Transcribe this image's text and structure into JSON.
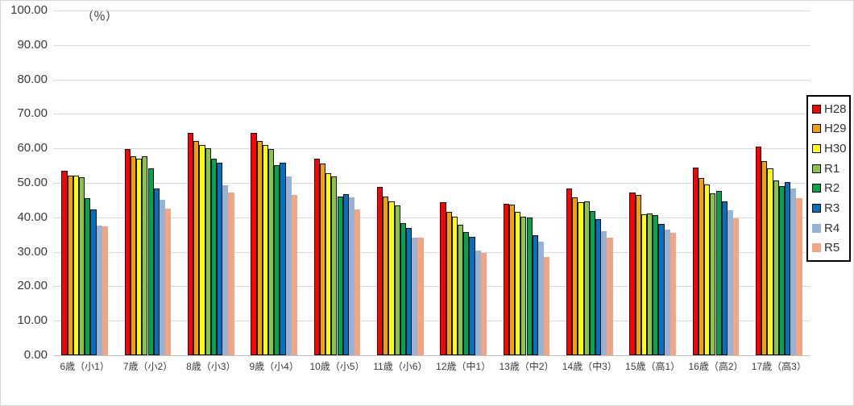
{
  "chart": {
    "unit_label": "（％）",
    "y_axis": {
      "tick_labels": [
        "100.00",
        "90.00",
        "80.00",
        "70.00",
        "60.00",
        "50.00",
        "40.00",
        "30.00",
        "20.00",
        "10.00",
        "0.00"
      ]
    },
    "colors": {
      "grid": "#d9d9d9",
      "axis": "#bfbfbf",
      "bar_border": "#111111"
    }
  },
  "chart_data": {
    "type": "bar",
    "title": "",
    "xlabel": "",
    "ylabel": "（％）",
    "ylim": [
      0,
      100
    ],
    "y_step": 10,
    "grid": "horizontal",
    "legend_position": "right",
    "categories": [
      "6歳（小1）",
      "7歳（小2）",
      "8歳（小3）",
      "9歳（小4）",
      "10歳（小5）",
      "11歳（小6）",
      "12歳（中1）",
      "13歳（中2）",
      "14歳（中3）",
      "15歳（高1）",
      "16歳（高2）",
      "17歳（高3）"
    ],
    "series": [
      {
        "name": "H28",
        "color": "#fe0000",
        "border": true,
        "values": [
          53.5,
          59.7,
          64.4,
          64.4,
          57.1,
          48.8,
          44.5,
          44.0,
          48.3,
          47.1,
          54.4,
          60.5
        ]
      },
      {
        "name": "H29",
        "color": "#f2a104",
        "border": true,
        "values": [
          52.0,
          57.6,
          62.2,
          62.1,
          55.7,
          46.1,
          41.7,
          43.6,
          45.7,
          46.4,
          51.3,
          56.4
        ]
      },
      {
        "name": "H30",
        "color": "#ffff00",
        "border": true,
        "values": [
          52.1,
          57.0,
          61.0,
          61.0,
          52.7,
          44.6,
          40.2,
          41.6,
          44.3,
          40.8,
          49.5,
          54.2
        ]
      },
      {
        "name": "R1",
        "color": "#8cc540",
        "border": true,
        "values": [
          51.6,
          57.6,
          60.1,
          59.7,
          51.8,
          43.4,
          37.9,
          40.3,
          44.6,
          41.2,
          47.0,
          50.8
        ]
      },
      {
        "name": "R2",
        "color": "#00a74a",
        "border": true,
        "values": [
          45.5,
          54.1,
          57.1,
          55.1,
          46.1,
          38.4,
          35.8,
          39.9,
          41.8,
          40.6,
          47.7,
          49.0
        ]
      },
      {
        "name": "R3",
        "color": "#0070c0",
        "border": true,
        "values": [
          42.4,
          48.4,
          55.8,
          55.8,
          46.7,
          36.8,
          34.3,
          34.8,
          39.5,
          38.0,
          44.6,
          50.2
        ]
      },
      {
        "name": "R4",
        "color": "#95b3d7",
        "border": false,
        "values": [
          37.6,
          45.1,
          49.2,
          51.9,
          45.8,
          34.2,
          30.4,
          32.9,
          35.9,
          36.4,
          42.0,
          48.4
        ]
      },
      {
        "name": "R5",
        "color": "#f3a482",
        "border": false,
        "values": [
          37.3,
          42.6,
          47.3,
          46.5,
          42.4,
          34.1,
          29.6,
          28.4,
          34.0,
          35.4,
          39.8,
          45.6
        ]
      }
    ]
  }
}
